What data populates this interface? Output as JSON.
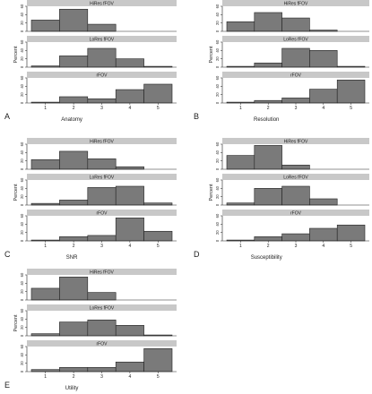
{
  "colors": {
    "strip": "#c8c8c8",
    "bar": "#7a7a7a",
    "axis": "#222222",
    "background": "#ffffff"
  },
  "chart_data": [
    {
      "type": "bar",
      "letter": "A",
      "xlabel": "Anatomy",
      "ylabel": "Percent",
      "categories": [
        "1",
        "2",
        "3",
        "4",
        "5"
      ],
      "ylim": [
        0,
        60
      ],
      "yticks": [
        0,
        20,
        40,
        60
      ],
      "grid": false,
      "series": [
        {
          "name": "HiRes fFOV",
          "values": [
            27,
            53,
            17,
            0,
            0
          ]
        },
        {
          "name": "LoRes fFOV",
          "values": [
            3,
            27,
            45,
            20,
            2
          ]
        },
        {
          "name": "rFOV",
          "values": [
            2,
            15,
            10,
            32,
            45
          ]
        }
      ]
    },
    {
      "type": "bar",
      "letter": "B",
      "xlabel": "Resolution",
      "ylabel": "Percent",
      "categories": [
        "1",
        "2",
        "3",
        "4",
        "5"
      ],
      "ylim": [
        0,
        60
      ],
      "yticks": [
        0,
        20,
        40,
        60
      ],
      "grid": false,
      "series": [
        {
          "name": "HiRes fFOV",
          "values": [
            23,
            45,
            32,
            3,
            0
          ]
        },
        {
          "name": "LoRes fFOV",
          "values": [
            2,
            10,
            45,
            40,
            2
          ]
        },
        {
          "name": "rFOV",
          "values": [
            2,
            6,
            12,
            33,
            55
          ]
        }
      ]
    },
    {
      "type": "bar",
      "letter": "C",
      "xlabel": "SNR",
      "ylabel": "Percent",
      "categories": [
        "1",
        "2",
        "3",
        "4",
        "5"
      ],
      "ylim": [
        0,
        60
      ],
      "yticks": [
        0,
        20,
        40,
        60
      ],
      "grid": false,
      "series": [
        {
          "name": "HiRes fFOV",
          "values": [
            23,
            43,
            25,
            6,
            0
          ]
        },
        {
          "name": "LoRes fFOV",
          "values": [
            4,
            12,
            42,
            45,
            5
          ]
        },
        {
          "name": "rFOV",
          "values": [
            2,
            10,
            13,
            55,
            23
          ]
        }
      ]
    },
    {
      "type": "bar",
      "letter": "D",
      "xlabel": "Susceptibility",
      "ylabel": "Percent",
      "categories": [
        "1",
        "2",
        "3",
        "4",
        "5"
      ],
      "ylim": [
        0,
        60
      ],
      "yticks": [
        0,
        20,
        40,
        60
      ],
      "grid": false,
      "series": [
        {
          "name": "HiRes fFOV",
          "values": [
            33,
            57,
            10,
            0,
            0
          ]
        },
        {
          "name": "LoRes fFOV",
          "values": [
            5,
            40,
            45,
            15,
            0
          ]
        },
        {
          "name": "rFOV",
          "values": [
            2,
            10,
            17,
            30,
            38
          ]
        }
      ]
    },
    {
      "type": "bar",
      "letter": "E",
      "xlabel": "Utility",
      "ylabel": "Percent",
      "categories": [
        "1",
        "2",
        "3",
        "4",
        "5"
      ],
      "ylim": [
        0,
        60
      ],
      "yticks": [
        0,
        20,
        40,
        60
      ],
      "grid": false,
      "series": [
        {
          "name": "HiRes fFOV",
          "values": [
            28,
            55,
            18,
            0,
            0
          ]
        },
        {
          "name": "LoRes fFOV",
          "values": [
            5,
            33,
            38,
            25,
            2
          ]
        },
        {
          "name": "rFOV",
          "values": [
            5,
            10,
            10,
            23,
            55
          ]
        }
      ]
    }
  ]
}
